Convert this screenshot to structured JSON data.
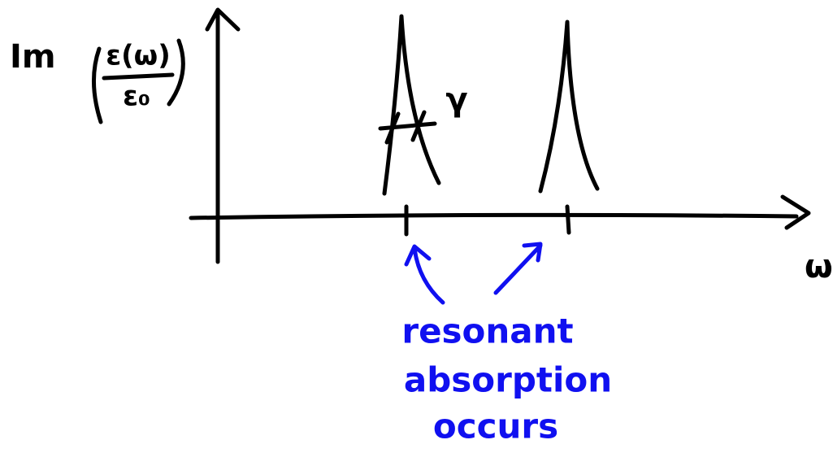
{
  "y_axis_label": {
    "prefix": "Im",
    "numerator": "ε(ω)",
    "denominator": "ε₀"
  },
  "x_axis_label": "ω",
  "width_label": "γ",
  "annotation": [
    "resonant",
    "absorption",
    "occurs"
  ]
}
